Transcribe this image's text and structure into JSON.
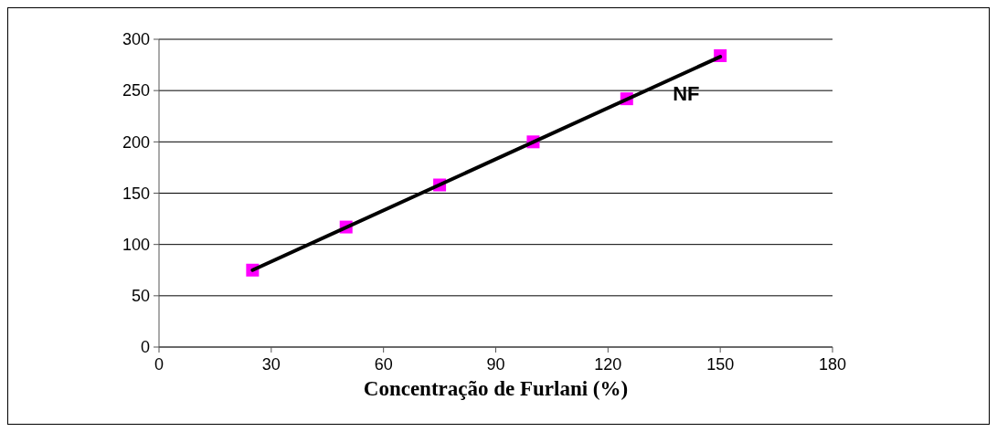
{
  "chart_data": {
    "type": "scatter",
    "xlabel": "Concentração de Furlani (%)",
    "series": [
      {
        "color": "#ff00ff",
        "marker": "square",
        "x": [
          25,
          50,
          75,
          100,
          125,
          150
        ],
        "values": [
          75,
          117,
          158,
          200,
          242,
          284
        ]
      },
      {
        "type": "line",
        "name": "NF",
        "color": "#000000",
        "marker": "none",
        "x": [
          25,
          150
        ],
        "values": [
          75,
          283
        ]
      }
    ],
    "xlim": [
      0,
      180
    ],
    "xticks": [
      0,
      30,
      60,
      90,
      120,
      150,
      180
    ],
    "ylim": [
      0,
      300
    ],
    "yticks": [
      0,
      50,
      100,
      150,
      200,
      250,
      300
    ],
    "grid": "y"
  }
}
